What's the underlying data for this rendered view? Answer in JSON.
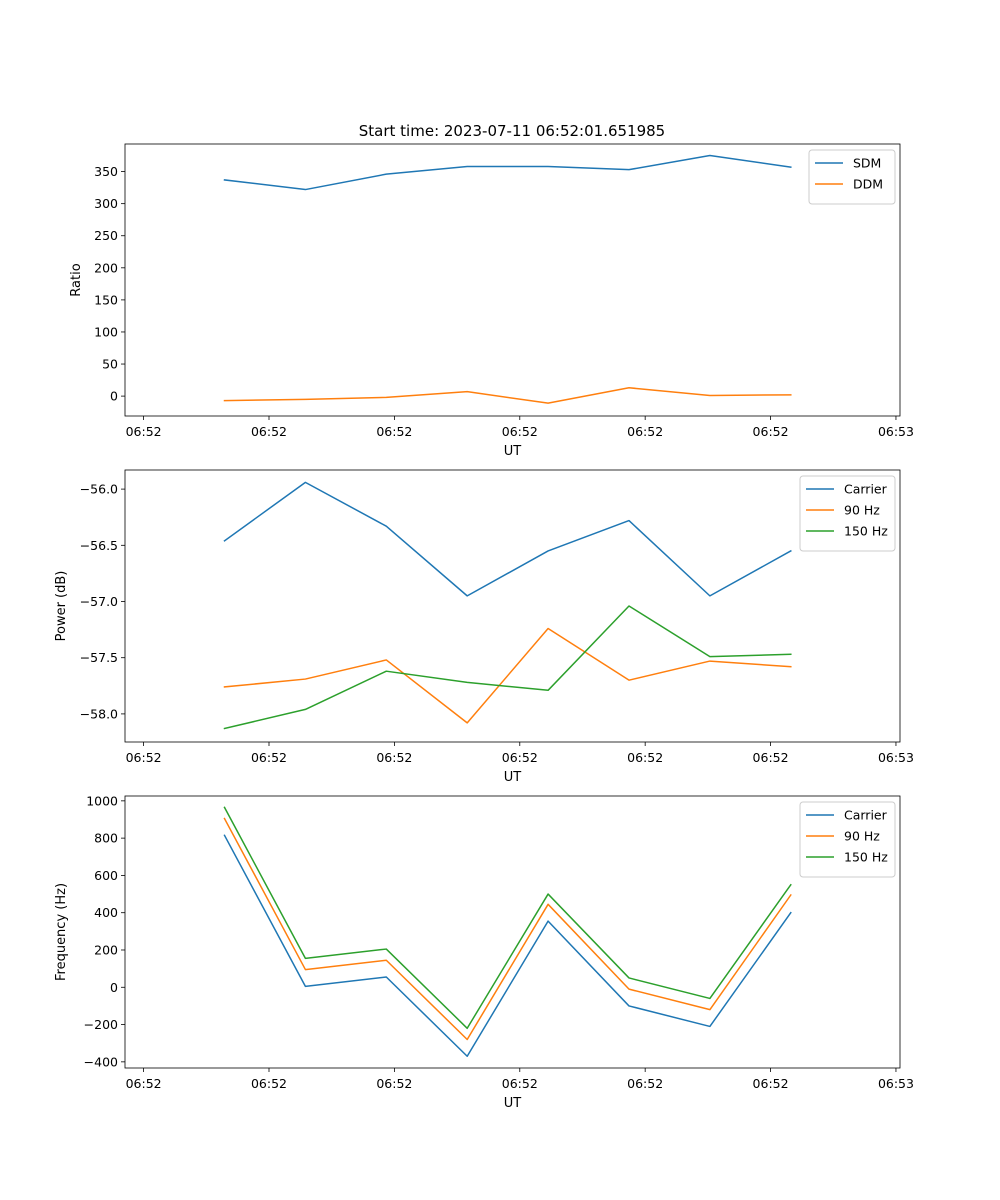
{
  "figure": {
    "title": "Start time: 2023-07-11 06:52:01.651985"
  },
  "colors": {
    "blue": "#1f77b4",
    "orange": "#ff7f0e",
    "green": "#2ca02c"
  },
  "chart_data": [
    {
      "type": "line",
      "id": "ratio",
      "title": "Start time: 2023-07-11 06:52:01.651985",
      "xlabel": "UT",
      "ylabel": "Ratio",
      "x": [
        1,
        2,
        3,
        4,
        5,
        6,
        7,
        8
      ],
      "xlim": [
        -0.23,
        9.35
      ],
      "ylim": [
        -31,
        393
      ],
      "xticks": [
        {
          "x": 0.0,
          "label": "06:52"
        },
        {
          "x": 1.55,
          "label": "06:52"
        },
        {
          "x": 3.1,
          "label": "06:52"
        },
        {
          "x": 4.65,
          "label": "06:52"
        },
        {
          "x": 6.2,
          "label": "06:52"
        },
        {
          "x": 7.75,
          "label": "06:52"
        },
        {
          "x": 9.3,
          "label": "06:53"
        }
      ],
      "yticks": [
        0,
        50,
        100,
        150,
        200,
        250,
        300,
        350
      ],
      "legend": "top-right",
      "series": [
        {
          "name": "SDM",
          "color": "#1f77b4",
          "values": [
            337,
            322,
            346,
            358,
            358,
            353,
            375,
            357
          ]
        },
        {
          "name": "DDM",
          "color": "#ff7f0e",
          "values": [
            -7,
            -5,
            -2,
            7,
            -11,
            13,
            1,
            2
          ]
        }
      ]
    },
    {
      "type": "line",
      "id": "power",
      "title": "",
      "xlabel": "UT",
      "ylabel": "Power (dB)",
      "x": [
        1,
        2,
        3,
        4,
        5,
        6,
        7,
        8
      ],
      "xlim": [
        -0.23,
        9.35
      ],
      "ylim": [
        -58.25,
        -55.83
      ],
      "xticks": [
        {
          "x": 0.0,
          "label": "06:52"
        },
        {
          "x": 1.55,
          "label": "06:52"
        },
        {
          "x": 3.1,
          "label": "06:52"
        },
        {
          "x": 4.65,
          "label": "06:52"
        },
        {
          "x": 6.2,
          "label": "06:52"
        },
        {
          "x": 7.75,
          "label": "06:52"
        },
        {
          "x": 9.3,
          "label": "06:53"
        }
      ],
      "yticks": [
        -58.0,
        -57.5,
        -57.0,
        -56.5,
        -56.0
      ],
      "legend": "top-right",
      "series": [
        {
          "name": "Carrier",
          "color": "#1f77b4",
          "values": [
            -56.46,
            -55.94,
            -56.33,
            -56.95,
            -56.55,
            -56.28,
            -56.95,
            -56.55
          ]
        },
        {
          "name": "90 Hz",
          "color": "#ff7f0e",
          "values": [
            -57.76,
            -57.69,
            -57.52,
            -58.08,
            -57.24,
            -57.7,
            -57.53,
            -57.58
          ]
        },
        {
          "name": "150 Hz",
          "color": "#2ca02c",
          "values": [
            -58.13,
            -57.96,
            -57.62,
            -57.72,
            -57.79,
            -57.04,
            -57.49,
            -57.47
          ]
        }
      ]
    },
    {
      "type": "line",
      "id": "frequency",
      "title": "",
      "xlabel": "UT",
      "ylabel": "Frequency (Hz)",
      "x": [
        1,
        2,
        3,
        4,
        5,
        6,
        7,
        8
      ],
      "xlim": [
        -0.23,
        9.35
      ],
      "ylim": [
        -433,
        1026
      ],
      "xticks": [
        {
          "x": 0.0,
          "label": "06:52"
        },
        {
          "x": 1.55,
          "label": "06:52"
        },
        {
          "x": 3.1,
          "label": "06:52"
        },
        {
          "x": 4.65,
          "label": "06:52"
        },
        {
          "x": 6.2,
          "label": "06:52"
        },
        {
          "x": 7.75,
          "label": "06:52"
        },
        {
          "x": 9.3,
          "label": "06:53"
        }
      ],
      "yticks": [
        -400,
        -200,
        0,
        200,
        400,
        600,
        800,
        1000
      ],
      "legend": "top-right",
      "series": [
        {
          "name": "Carrier",
          "color": "#1f77b4",
          "values": [
            815,
            5,
            55,
            -370,
            355,
            -100,
            -210,
            400
          ]
        },
        {
          "name": "90 Hz",
          "color": "#ff7f0e",
          "values": [
            905,
            95,
            145,
            -280,
            445,
            -10,
            -120,
            495
          ]
        },
        {
          "name": "150 Hz",
          "color": "#2ca02c",
          "values": [
            965,
            155,
            205,
            -220,
            500,
            50,
            -60,
            550
          ]
        }
      ]
    }
  ]
}
